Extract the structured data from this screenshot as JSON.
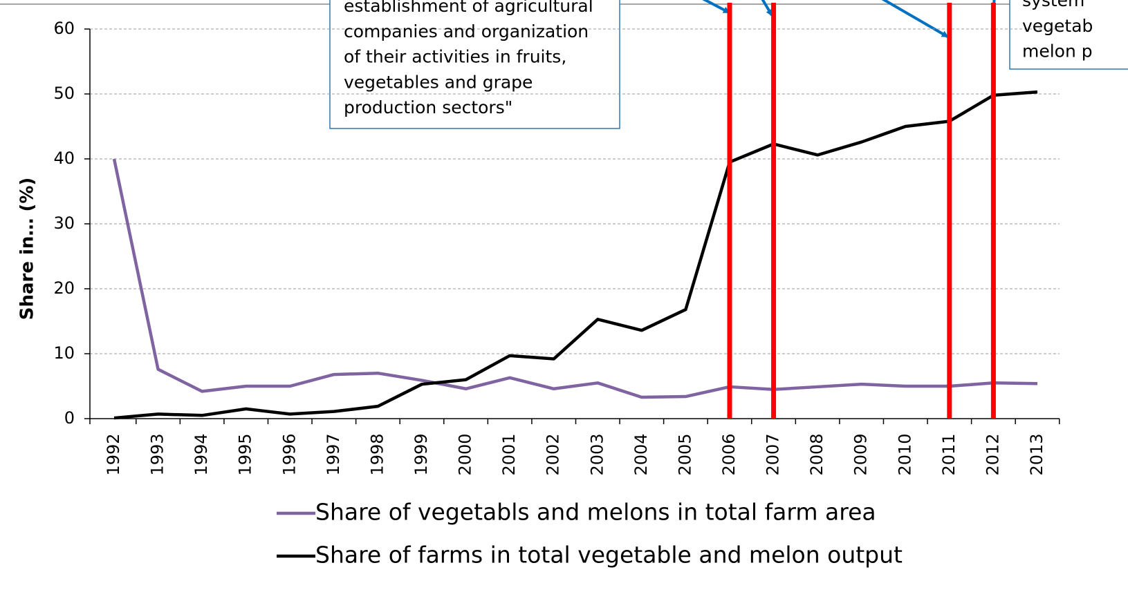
{
  "chart_data": {
    "type": "line",
    "y_label": "Share in… (%)",
    "categories": [
      "1992",
      "1993",
      "1994",
      "1995",
      "1996",
      "1997",
      "1998",
      "1999",
      "2000",
      "2001",
      "2002",
      "2003",
      "2004",
      "2005",
      "2006",
      "2007",
      "2008",
      "2009",
      "2010",
      "2011",
      "2012",
      "2013"
    ],
    "series": [
      {
        "name": "Share of vegetabls and melons in total farm area",
        "color": "#8064a2",
        "values": [
          40,
          7.6,
          4.2,
          5.0,
          5.0,
          6.8,
          7.0,
          5.9,
          4.6,
          6.3,
          4.6,
          5.5,
          3.3,
          3.4,
          4.9,
          4.5,
          4.9,
          5.3,
          5.0,
          5.0,
          5.5,
          5.4
        ]
      },
      {
        "name": "Share of farms in total vegetable and melon output",
        "color": "#000000",
        "values": [
          0.1,
          0.7,
          0.5,
          1.5,
          0.7,
          1.1,
          1.9,
          5.3,
          6.0,
          9.7,
          9.2,
          15.3,
          13.6,
          16.8,
          39.5,
          42.3,
          40.6,
          42.6,
          45.0,
          45.8,
          49.8,
          50.3
        ]
      }
    ],
    "ylim": [
      0,
      60
    ],
    "yticks": [
      0,
      10,
      20,
      30,
      40,
      50,
      60
    ],
    "grid": true,
    "highlight_categories": [
      "2006",
      "2007",
      "2011",
      "2012"
    ],
    "highlight_color": "#ff0000",
    "annotations": [
      {
        "lines": [
          "establishment of agricultural",
          "companies and organization",
          "of their activities in fruits,",
          "vegetables and grape",
          "production sectors\""
        ]
      },
      {
        "lines": [
          "system",
          "vegetab",
          "melon p"
        ]
      }
    ]
  }
}
